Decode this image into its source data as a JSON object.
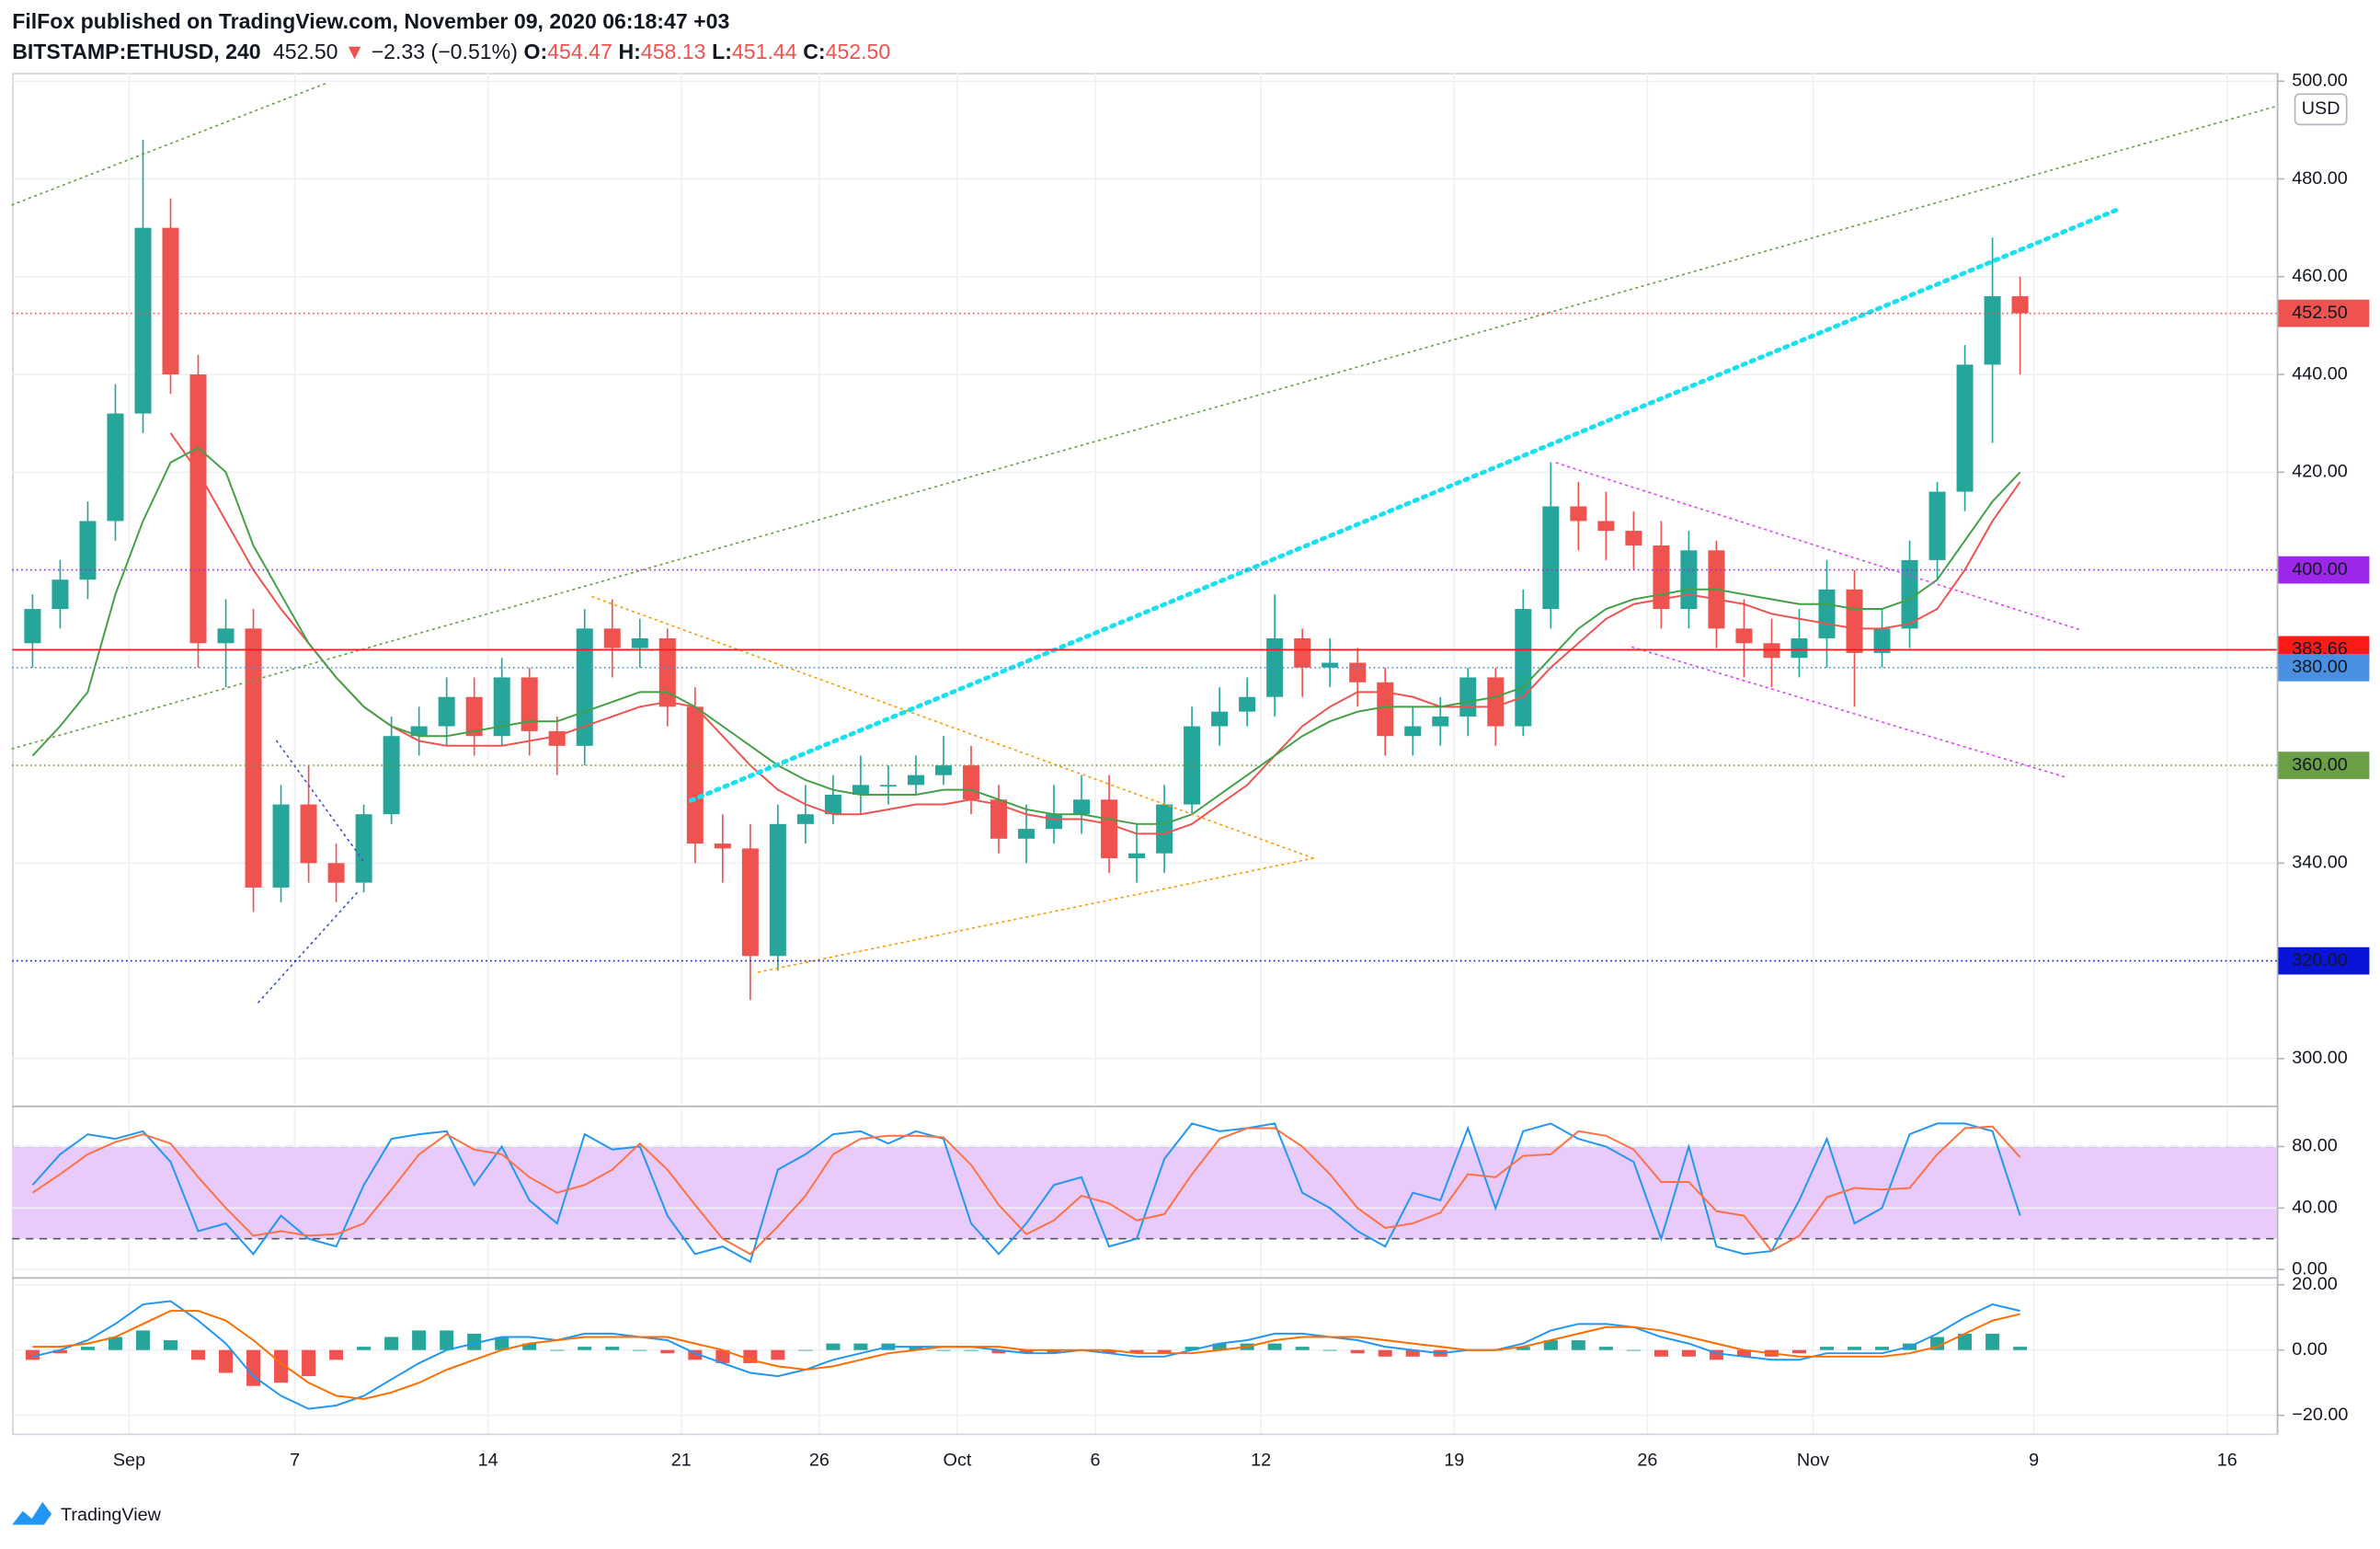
{
  "header": {
    "publisher": "FilFox published on TradingView.com, November 09, 2020 06:18:47 +03",
    "symbol": "BITSTAMP:ETHUSD, 240",
    "last": "452.50",
    "arrow": "▼",
    "change": "−2.33 (−0.51%)",
    "ohlc": [
      {
        "key": "O:",
        "value": "454.47"
      },
      {
        "key": "H:",
        "value": "458.13"
      },
      {
        "key": "L:",
        "value": "451.44"
      },
      {
        "key": "C:",
        "value": "452.50"
      }
    ]
  },
  "footer": {
    "brand": "TradingView"
  },
  "chart_data": [
    {
      "type": "candlestick",
      "axis_unit": "USD",
      "up_color": "#26a69a",
      "down_color": "#ef5350",
      "grid": true,
      "x": [
        -2.5,
        -1.5,
        -0.5,
        0.5,
        1.5,
        2.5,
        3.5,
        4.5,
        5.5,
        6.5,
        7.5,
        8.5,
        9.5,
        10.5,
        11.5,
        12.5,
        13.5,
        14.5,
        15.5,
        16.5,
        17.5,
        18.5,
        19.5,
        20.5,
        21.5,
        22.5,
        23.5,
        24.5,
        25.5,
        26.5,
        27.5,
        28.5,
        29.5,
        30.5,
        31.5,
        32.5,
        33.5,
        34.5,
        35.5,
        36.5,
        37.5,
        38.5,
        39.5,
        40.5,
        41.5,
        42.5,
        43.5,
        44.5,
        45.5,
        46.5,
        47.5,
        48.5,
        49.5,
        50.5,
        51.5,
        52.5,
        53.5,
        54.5,
        55.5,
        56.5,
        57.5,
        58.5,
        59.5,
        60.5,
        61.5,
        62.5,
        63.5,
        64.5,
        65.5,
        66.5,
        67.5,
        68.5,
        69.5
      ],
      "open": [
        385,
        392,
        398,
        410,
        432,
        470,
        440,
        385,
        388,
        335,
        352,
        340,
        336,
        350,
        366,
        368,
        374,
        366,
        378,
        367,
        364,
        388,
        384,
        386,
        372,
        344,
        343,
        321,
        348,
        350,
        354,
        356,
        356,
        358,
        360,
        353,
        345,
        347,
        350,
        353,
        341,
        342,
        352,
        368,
        371,
        374,
        386,
        380,
        381,
        377,
        366,
        368,
        370,
        378,
        368,
        392,
        413,
        410,
        408,
        405,
        392,
        404,
        388,
        385,
        382,
        386,
        396,
        383,
        388,
        402,
        416,
        442,
        456
      ],
      "high": [
        395,
        402,
        414,
        438,
        488,
        476,
        444,
        394,
        392,
        356,
        360,
        344,
        352,
        370,
        372,
        378,
        378,
        382,
        380,
        370,
        392,
        394,
        390,
        388,
        376,
        350,
        348,
        352,
        356,
        358,
        362,
        360,
        362,
        366,
        364,
        356,
        352,
        356,
        358,
        358,
        348,
        356,
        372,
        376,
        378,
        395,
        388,
        386,
        384,
        380,
        372,
        374,
        380,
        380,
        396,
        422,
        418,
        416,
        412,
        410,
        408,
        406,
        394,
        390,
        392,
        402,
        400,
        392,
        406,
        418,
        446,
        468,
        460
      ],
      "low": [
        380,
        388,
        394,
        406,
        428,
        436,
        380,
        376,
        330,
        332,
        336,
        332,
        334,
        348,
        362,
        364,
        362,
        364,
        362,
        358,
        360,
        378,
        380,
        368,
        340,
        336,
        312,
        318,
        344,
        348,
        350,
        352,
        354,
        356,
        350,
        342,
        340,
        344,
        346,
        338,
        336,
        338,
        350,
        364,
        368,
        370,
        374,
        376,
        372,
        362,
        362,
        364,
        366,
        364,
        366,
        388,
        404,
        402,
        400,
        388,
        388,
        384,
        378,
        376,
        378,
        380,
        372,
        380,
        384,
        398,
        412,
        426,
        440
      ],
      "close": [
        392,
        398,
        410,
        432,
        470,
        440,
        385,
        388,
        335,
        352,
        340,
        336,
        350,
        366,
        368,
        374,
        366,
        378,
        367,
        364,
        388,
        384,
        386,
        372,
        344,
        343,
        321,
        348,
        350,
        354,
        356,
        356,
        358,
        360,
        353,
        345,
        347,
        350,
        353,
        341,
        342,
        352,
        368,
        371,
        374,
        386,
        380,
        381,
        377,
        366,
        368,
        370,
        378,
        368,
        392,
        413,
        410,
        408,
        405,
        392,
        404,
        388,
        385,
        382,
        386,
        396,
        383,
        388,
        402,
        416,
        442,
        456,
        452.5
      ],
      "lines": [
        {
          "color": "#ef5350",
          "values": [
            null,
            null,
            null,
            null,
            null,
            428,
            420,
            410,
            400,
            392,
            385,
            378,
            372,
            368,
            365,
            364,
            364,
            364,
            365,
            366,
            368,
            370,
            372,
            373,
            372,
            366,
            360,
            355,
            352,
            350,
            350,
            351,
            352,
            352,
            353,
            352,
            350,
            349,
            349,
            348,
            346,
            346,
            348,
            352,
            356,
            362,
            368,
            372,
            375,
            375,
            374,
            372,
            372,
            372,
            374,
            380,
            385,
            390,
            393,
            394,
            395,
            394,
            393,
            391,
            390,
            389,
            388,
            388,
            389,
            392,
            400,
            410,
            418
          ]
        },
        {
          "color": "#43a047",
          "values": [
            362,
            368,
            375,
            395,
            410,
            422,
            425,
            420,
            405,
            395,
            385,
            378,
            372,
            368,
            366,
            366,
            367,
            368,
            369,
            369,
            371,
            373,
            375,
            375,
            372,
            368,
            364,
            360,
            357,
            355,
            354,
            354,
            354,
            355,
            355,
            353,
            351,
            350,
            350,
            349,
            348,
            348,
            350,
            354,
            358,
            362,
            366,
            369,
            371,
            372,
            372,
            372,
            373,
            374,
            376,
            382,
            388,
            392,
            394,
            395,
            396,
            396,
            395,
            394,
            393,
            393,
            392,
            392,
            394,
            398,
            406,
            414,
            420
          ]
        }
      ],
      "xlim": [
        -3.24,
        78.8
      ],
      "xticks": [
        {
          "value": 1,
          "label": "Sep"
        },
        7,
        14,
        21,
        26,
        {
          "value": 31,
          "label": "Oct"
        },
        {
          "value": 36,
          "label": "6"
        },
        {
          "value": 42,
          "label": "12"
        },
        {
          "value": 49,
          "label": "19"
        },
        {
          "value": 56,
          "label": "26"
        },
        {
          "value": 62,
          "label": "Nov"
        },
        {
          "value": 70,
          "label": "9"
        },
        {
          "value": 77,
          "label": "16"
        }
      ],
      "ylim": [
        290.7,
        501.7
      ],
      "yticks": [
        {
          "value": 300,
          "label": "300.00"
        },
        {
          "value": 340,
          "label": "340.00"
        },
        {
          "value": 420,
          "label": "420.00"
        },
        {
          "value": 440,
          "label": "440.00"
        },
        {
          "value": 460,
          "label": "460.00"
        },
        {
          "value": 480,
          "label": "480.00"
        },
        {
          "value": 500,
          "label": "500.00"
        }
      ],
      "hlines": [
        {
          "value": 452.5,
          "label": "452.50",
          "color": "#ef5350",
          "style": "dotted"
        },
        {
          "value": 400,
          "label": "400.00",
          "color": "#9c27e8",
          "style": "dotted"
        },
        {
          "value": 383.66,
          "label": "383.66",
          "color": "#ff1a1a",
          "style": "solid"
        },
        {
          "value": 380,
          "label": "380.00",
          "color": "#4a90e2",
          "style": "dotted"
        },
        {
          "value": 360,
          "label": "360.00",
          "color": "#6a9f45",
          "style": "dotted"
        },
        {
          "value": 320,
          "label": "320.00",
          "color": "#0a14d8",
          "style": "dotted"
        }
      ],
      "trendlines": [
        {
          "color": "#6a9f45",
          "style": "dotted",
          "points": [
            [
              -3.24,
              363.4
            ],
            [
              78.8,
              494.9
            ]
          ]
        },
        {
          "color": "#6a9f45",
          "style": "dotted",
          "points": [
            [
              -3.24,
              474.7
            ],
            [
              8.15,
              499.6
            ]
          ]
        },
        {
          "color": "#18e0f0",
          "style": "dots",
          "points": [
            [
              21.35,
              352.8
            ],
            [
              73.06,
              473.8
            ]
          ]
        },
        {
          "color": "#ff9800",
          "style": "dotted",
          "points": [
            [
              17.78,
              394.5
            ],
            [
              43.9,
              341.0
            ]
          ]
        },
        {
          "color": "#ff9800",
          "style": "dotted",
          "points": [
            [
              23.8,
              317.7
            ],
            [
              43.9,
              341.0
            ]
          ]
        },
        {
          "color": "#e040fb",
          "style": "dotted",
          "points": [
            [
              52.7,
              421.9
            ],
            [
              71.7,
              387.7
            ]
          ]
        },
        {
          "color": "#e040fb",
          "style": "dotted",
          "points": [
            [
              55.45,
              384.2
            ],
            [
              71.2,
              357.5
            ]
          ]
        },
        {
          "color": "#3f51d8",
          "style": "dotted",
          "points": [
            [
              6.34,
              365.0
            ],
            [
              9.53,
              340.1
            ]
          ]
        },
        {
          "color": "#3f51d8",
          "style": "dotted",
          "points": [
            [
              5.68,
              311.5
            ],
            [
              9.25,
              333.9
            ]
          ]
        }
      ]
    },
    {
      "type": "line",
      "band_color": "#e8cbfb",
      "bands": [
        20,
        80
      ],
      "series": [
        {
          "color": "#2196f3",
          "values": [
            55,
            75,
            88,
            85,
            90,
            70,
            25,
            30,
            10,
            35,
            20,
            15,
            55,
            85,
            88,
            90,
            55,
            80,
            45,
            30,
            88,
            78,
            80,
            35,
            10,
            15,
            5,
            65,
            75,
            88,
            90,
            82,
            90,
            85,
            30,
            10,
            30,
            55,
            60,
            15,
            20,
            72,
            95,
            90,
            92,
            95,
            50,
            40,
            25,
            15,
            50,
            45,
            92,
            40,
            90,
            95,
            85,
            80,
            70,
            20,
            80,
            15,
            10,
            12,
            45,
            85,
            30,
            40,
            88,
            95,
            95,
            90,
            35
          ]
        },
        {
          "color": "#ff7043",
          "values": [
            50,
            62,
            75,
            83,
            88,
            82,
            60,
            40,
            22,
            25,
            22,
            23,
            30,
            52,
            75,
            88,
            78,
            75,
            60,
            50,
            55,
            65,
            82,
            65,
            42,
            20,
            10,
            28,
            48,
            75,
            85,
            87,
            87,
            86,
            68,
            42,
            23,
            32,
            48,
            43,
            32,
            36,
            62,
            85,
            92,
            92,
            80,
            62,
            40,
            27,
            30,
            37,
            62,
            60,
            74,
            75,
            90,
            87,
            78,
            57,
            57,
            38,
            35,
            12,
            22,
            47,
            53,
            52,
            53,
            75,
            92,
            93,
            73
          ]
        }
      ],
      "ylim": [
        -4,
        104.7
      ],
      "yticks": [
        {
          "value": 0,
          "label": "0.00"
        },
        {
          "value": 40,
          "label": "40.00"
        },
        {
          "value": 80,
          "label": "80.00"
        }
      ]
    },
    {
      "type": "line",
      "histogram": {
        "up_color": "#26a69a",
        "down_color": "#ef5350",
        "values": [
          -3,
          -1,
          1,
          4,
          6,
          3,
          -3,
          -7,
          -11,
          -10,
          -8,
          -3,
          1,
          4,
          6,
          6,
          5,
          4,
          2,
          0,
          1,
          1,
          0,
          -1,
          -3,
          -4,
          -4,
          -3,
          0,
          2,
          2,
          2,
          1,
          0,
          0,
          -1,
          -1,
          -1,
          0,
          -1,
          -1,
          -1,
          1,
          2,
          2,
          2,
          1,
          0,
          -1,
          -2,
          -2,
          -2,
          0,
          0,
          1,
          3,
          3,
          1,
          0,
          -2,
          -2,
          -3,
          -2,
          -2,
          -1,
          1,
          1,
          1,
          2,
          4,
          5,
          5,
          1
        ]
      },
      "series": [
        {
          "color": "#2196f3",
          "values": [
            -2,
            0,
            3,
            8,
            14,
            15,
            9,
            2,
            -8,
            -14,
            -18,
            -17,
            -14,
            -9,
            -4,
            0,
            2,
            4,
            4,
            3,
            5,
            5,
            4,
            3,
            -1,
            -4,
            -7,
            -8,
            -6,
            -3,
            -1,
            1,
            1,
            1,
            1,
            0,
            -1,
            -1,
            0,
            -1,
            -2,
            -2,
            0,
            2,
            3,
            5,
            5,
            4,
            3,
            1,
            0,
            -1,
            0,
            0,
            2,
            6,
            8,
            8,
            7,
            4,
            2,
            -1,
            -2,
            -3,
            -3,
            -1,
            -1,
            -1,
            1,
            5,
            10,
            14,
            12
          ]
        },
        {
          "color": "#ff6d00",
          "values": [
            1,
            1,
            2,
            4,
            8,
            12,
            12,
            9,
            3,
            -4,
            -10,
            -14,
            -15,
            -13,
            -10,
            -6,
            -3,
            0,
            2,
            3,
            4,
            4,
            4,
            4,
            2,
            0,
            -3,
            -5,
            -6,
            -5,
            -3,
            -1,
            0,
            1,
            1,
            1,
            0,
            0,
            0,
            0,
            -1,
            -1,
            -1,
            0,
            1,
            3,
            4,
            4,
            4,
            3,
            2,
            1,
            0,
            0,
            1,
            3,
            5,
            7,
            7,
            6,
            4,
            2,
            0,
            -1,
            -2,
            -2,
            -2,
            -2,
            -1,
            1,
            5,
            9,
            11
          ]
        }
      ],
      "ylim": [
        -25.6,
        21.4
      ],
      "yticks": [
        {
          "value": -20,
          "label": "−20.00"
        },
        {
          "value": 0,
          "label": "0.00"
        },
        {
          "value": 20,
          "label": "20.00"
        }
      ]
    }
  ]
}
